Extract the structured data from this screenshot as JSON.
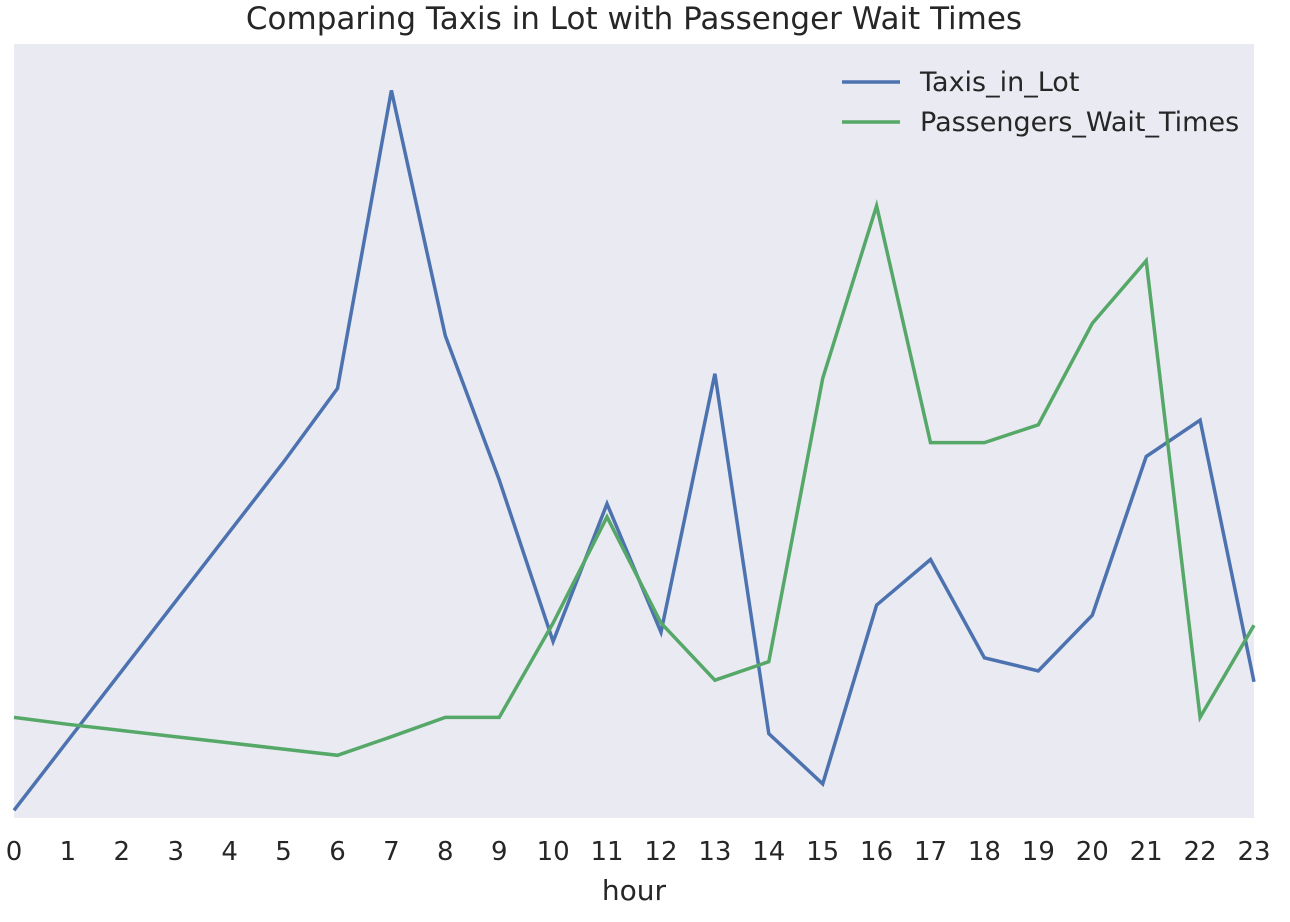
{
  "chart_data": {
    "type": "line",
    "title": "Comparing Taxis in Lot with Passenger Wait Times",
    "xlabel": "hour",
    "ylabel": "",
    "x": [
      0,
      1,
      2,
      3,
      4,
      5,
      6,
      7,
      8,
      9,
      10,
      11,
      12,
      13,
      14,
      15,
      16,
      17,
      18,
      19,
      20,
      21,
      22,
      23
    ],
    "xlim": [
      0,
      23
    ],
    "ylim": [
      0,
      100
    ],
    "grid": false,
    "y_tick_labels_visible": false,
    "legend_position": "top-right",
    "series": [
      {
        "name": "Taxis_in_Lot",
        "color": "#4c72b0",
        "values": [
          1,
          10,
          19,
          28,
          37,
          46,
          55.5,
          94,
          62.3,
          43.7,
          22.8,
          40.6,
          24.0,
          57.4,
          10.9,
          4.4,
          27.5,
          33.4,
          20.7,
          19.0,
          26.2,
          46.7,
          51.4,
          17.6
        ]
      },
      {
        "name": "Passengers_Wait_Times",
        "color": "#55a868",
        "values": [
          13.0,
          12.1,
          11.3,
          10.5,
          9.7,
          8.9,
          8.1,
          10.5,
          13.0,
          13.0,
          25.2,
          38.9,
          25.2,
          17.8,
          20.2,
          56.8,
          79.1,
          48.5,
          48.5,
          50.8,
          63.9,
          72.0,
          13.0,
          24.9
        ]
      }
    ]
  }
}
